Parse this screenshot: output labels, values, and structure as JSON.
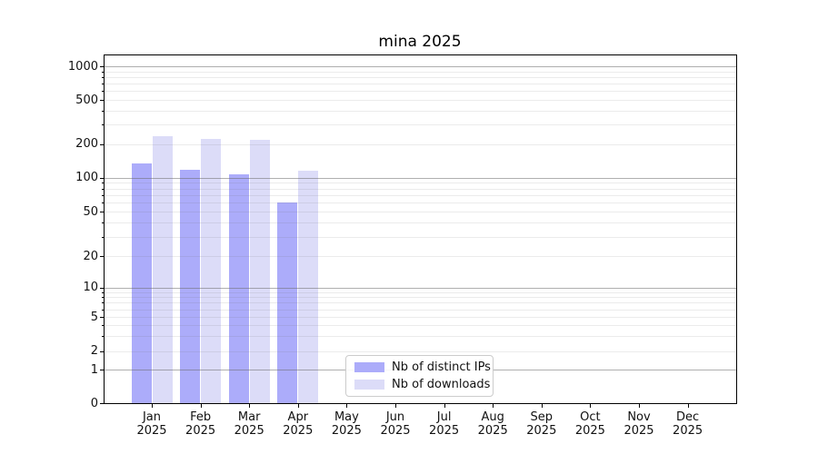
{
  "figure": {
    "title": "mina 2025"
  },
  "chart_data": {
    "type": "bar",
    "title": "mina 2025",
    "categories": [
      "Jan 2025",
      "Feb 2025",
      "Mar 2025",
      "Apr 2025",
      "May 2025",
      "Jun 2025",
      "Jul 2025",
      "Aug 2025",
      "Sep 2025",
      "Oct 2025",
      "Nov 2025",
      "Dec 2025"
    ],
    "series": [
      {
        "name": "Nb of distinct IPs",
        "color": "#acacfa",
        "values": [
          133,
          117,
          106,
          60,
          0,
          0,
          0,
          0,
          0,
          0,
          0,
          0
        ]
      },
      {
        "name": "Nb of downloads",
        "color": "#dcdcf8",
        "values": [
          235,
          221,
          217,
          115,
          0,
          0,
          0,
          0,
          0,
          0,
          0,
          0
        ]
      }
    ],
    "yscale": "symlog",
    "yticks": [
      0,
      1,
      2,
      5,
      10,
      20,
      50,
      100,
      200,
      500,
      1000
    ],
    "ylim": [
      0,
      1270
    ],
    "xlabel": "",
    "ylabel": "",
    "grid": true,
    "legend_position": "lower center"
  }
}
